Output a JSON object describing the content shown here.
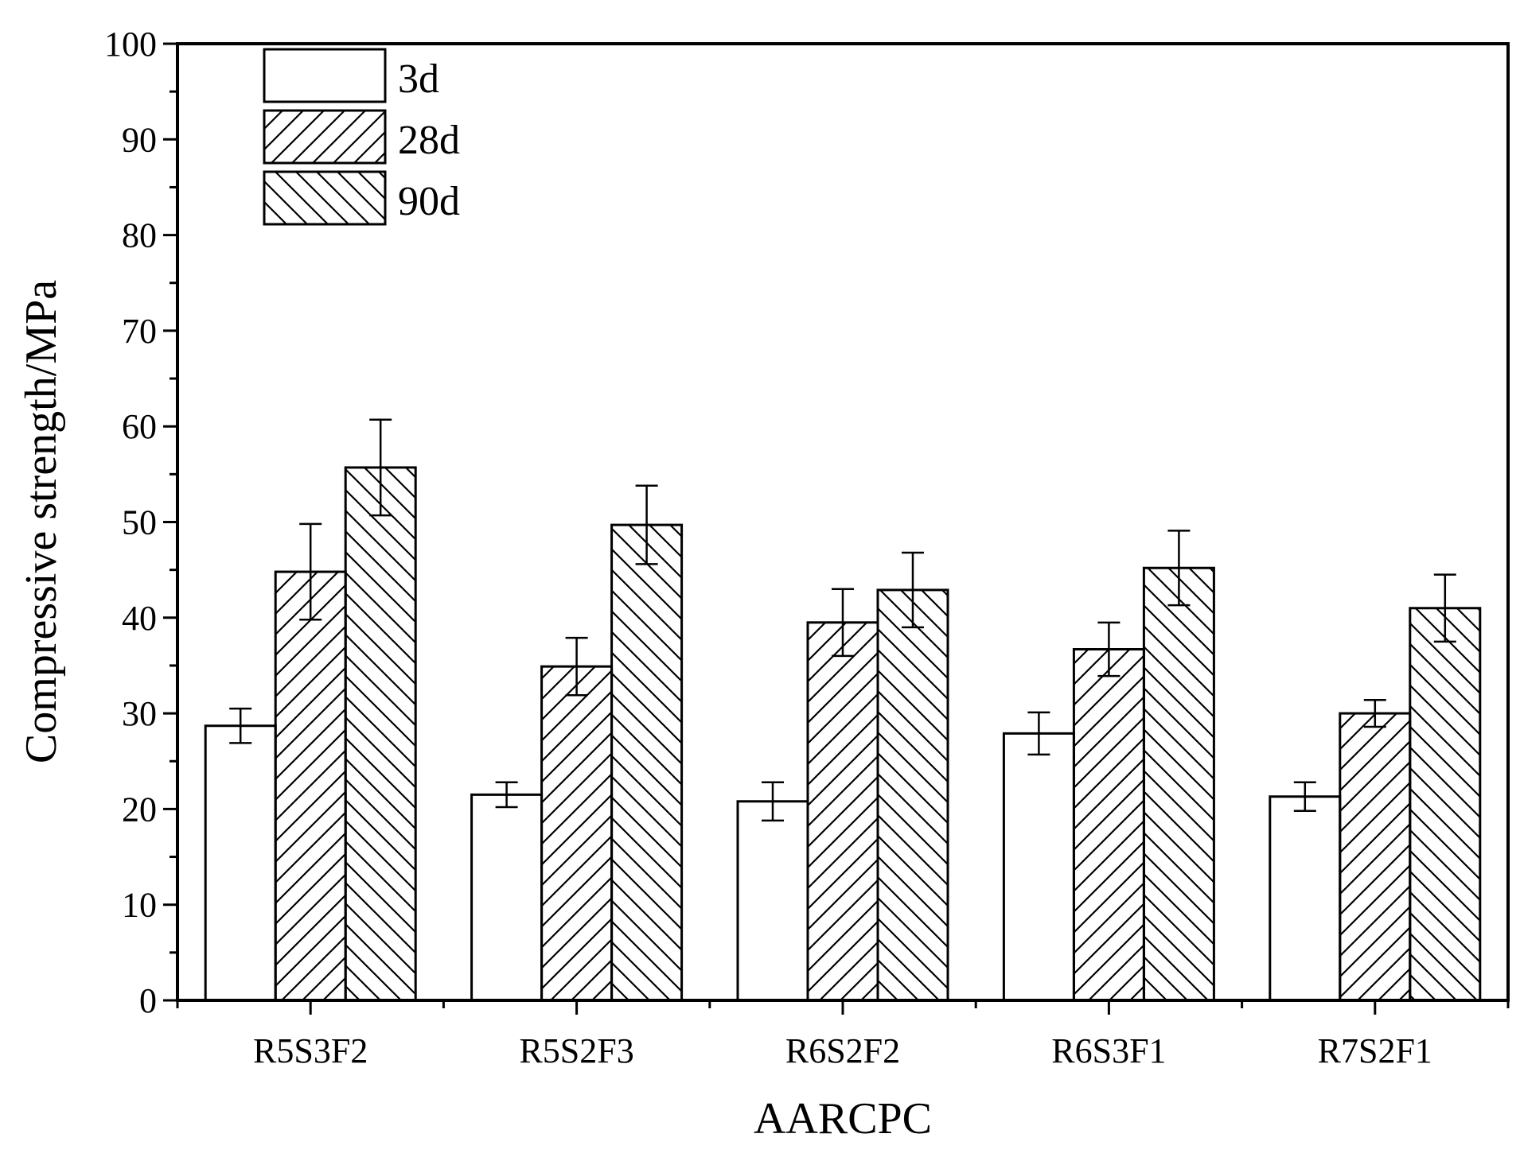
{
  "chart_data": {
    "type": "bar",
    "title": "",
    "xlabel": "AARCPC",
    "ylabel": "Compressive strength/MPa",
    "ylim": [
      0,
      100
    ],
    "yticks": [
      0,
      10,
      20,
      30,
      40,
      50,
      60,
      70,
      80,
      90,
      100
    ],
    "categories": [
      "R5S3F2",
      "R5S2F3",
      "R6S2F2",
      "R6S3F1",
      "R7S2F1"
    ],
    "series": [
      {
        "name": "3d",
        "pattern": "none",
        "values": [
          28.7,
          21.5,
          20.8,
          27.9,
          21.3
        ],
        "errors": [
          1.8,
          1.3,
          2.0,
          2.2,
          1.5
        ]
      },
      {
        "name": "28d",
        "pattern": "forward-hatch",
        "values": [
          44.8,
          34.9,
          39.5,
          36.7,
          30.0
        ],
        "errors": [
          5.0,
          3.0,
          3.5,
          2.8,
          1.4
        ]
      },
      {
        "name": "90d",
        "pattern": "back-hatch",
        "values": [
          55.7,
          49.7,
          42.9,
          45.2,
          41.0
        ],
        "errors": [
          5.0,
          4.1,
          3.9,
          3.9,
          3.5
        ]
      }
    ],
    "legend_position": "top-left",
    "grid": false
  }
}
